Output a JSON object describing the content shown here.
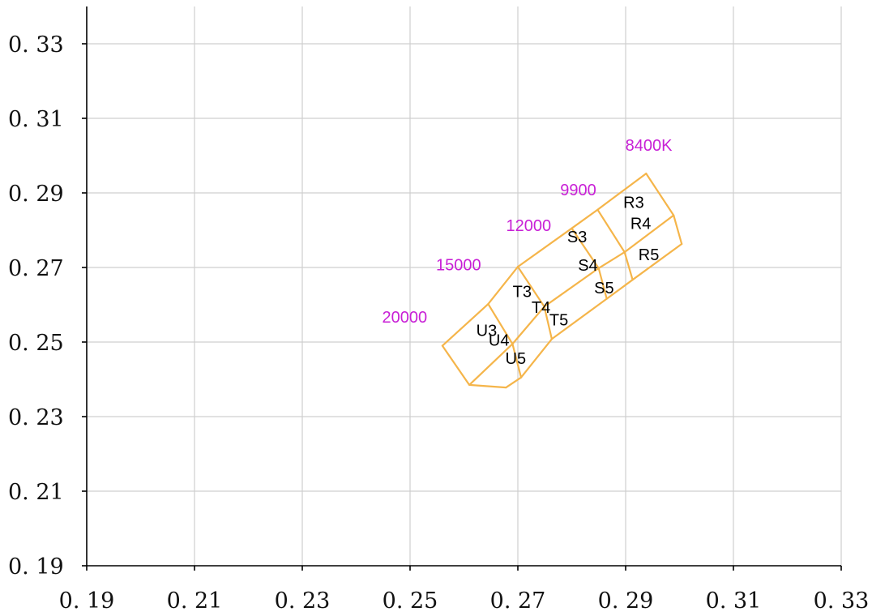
{
  "chart_data": {
    "type": "scatter",
    "title": "",
    "xlabel": "",
    "ylabel": "",
    "xlim": [
      0.19,
      0.33
    ],
    "ylim": [
      0.19,
      0.34
    ],
    "grid": true,
    "x_ticks": [
      "0. 19",
      "0. 21",
      "0. 23",
      "0. 25",
      "0. 27",
      "0. 29",
      "0. 31",
      "0. 33"
    ],
    "y_ticks": [
      "0. 19",
      "0. 21",
      "0. 23",
      "0. 25",
      "0. 27",
      "0. 29",
      "0. 31",
      "0. 33"
    ],
    "x_tick_values": [
      0.19,
      0.21,
      0.23,
      0.25,
      0.27,
      0.29,
      0.31,
      0.33
    ],
    "y_tick_values": [
      0.19,
      0.21,
      0.23,
      0.25,
      0.27,
      0.29,
      0.31,
      0.33
    ],
    "bin_grid": {
      "color": "#f5b54a",
      "rows": [
        [
          [
            0.2938,
            0.2952
          ],
          [
            0.2989,
            0.284
          ],
          [
            0.3004,
            0.2763
          ]
        ],
        [
          [
            0.2848,
            0.2855
          ],
          [
            0.2898,
            0.2741
          ],
          [
            0.2913,
            0.2667
          ]
        ],
        [
          [
            0.28,
            0.2805
          ],
          [
            0.285,
            0.2698
          ],
          [
            0.2865,
            0.2616
          ]
        ],
        [
          [
            0.27,
            0.2702
          ],
          [
            0.2749,
            0.2595
          ],
          [
            0.2763,
            0.2508
          ]
        ],
        [
          [
            0.2645,
            0.2602
          ],
          [
            0.269,
            0.2495
          ],
          [
            0.2706,
            0.2405
          ]
        ],
        [
          [
            0.256,
            0.249
          ],
          [
            0.261,
            0.2385
          ],
          [
            0.2678,
            0.2378
          ]
        ]
      ]
    },
    "bin_labels": [
      {
        "text": "R3",
        "x": 0.2915,
        "y": 0.2875
      },
      {
        "text": "R4",
        "x": 0.2928,
        "y": 0.2819
      },
      {
        "text": "R5",
        "x": 0.2943,
        "y": 0.2735
      },
      {
        "text": "S3",
        "x": 0.281,
        "y": 0.2783
      },
      {
        "text": "S4",
        "x": 0.283,
        "y": 0.2707
      },
      {
        "text": "S5",
        "x": 0.286,
        "y": 0.2646
      },
      {
        "text": "T3",
        "x": 0.2708,
        "y": 0.2636
      },
      {
        "text": "T4",
        "x": 0.2743,
        "y": 0.2594
      },
      {
        "text": "T5",
        "x": 0.2776,
        "y": 0.256
      },
      {
        "text": "U3",
        "x": 0.2642,
        "y": 0.2532
      },
      {
        "text": "U4",
        "x": 0.2665,
        "y": 0.2505
      },
      {
        "text": "U5",
        "x": 0.2696,
        "y": 0.2457
      }
    ],
    "cct_labels": {
      "color": "#c81fd6",
      "items": [
        {
          "text": "8400K",
          "x": 0.2943,
          "y": 0.3028
        },
        {
          "text": "9900",
          "x": 0.2812,
          "y": 0.2909
        },
        {
          "text": "12000",
          "x": 0.272,
          "y": 0.2813
        },
        {
          "text": "15000",
          "x": 0.259,
          "y": 0.2708
        },
        {
          "text": "20000",
          "x": 0.249,
          "y": 0.2567
        }
      ]
    }
  }
}
